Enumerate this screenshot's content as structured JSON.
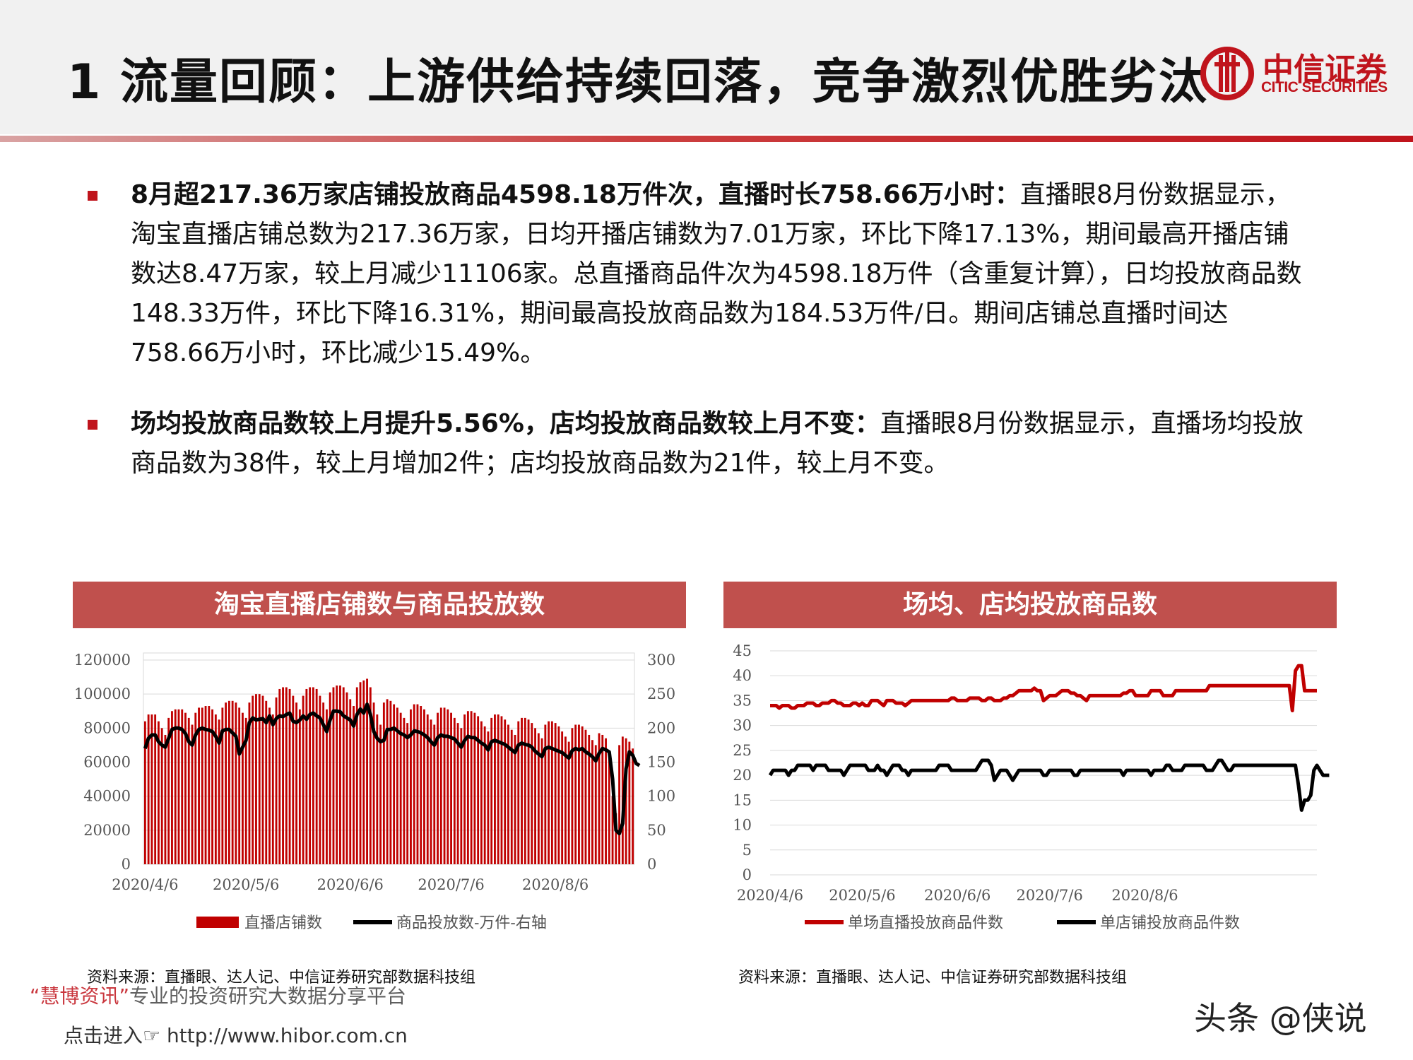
{
  "header": {
    "title": "1 流量回顾：上游供给持续回落，竞争激烈优胜劣汰",
    "logo_cn": "中信证券",
    "logo_en": "CITIC SECURITIES"
  },
  "bullets": [
    {
      "bold": "8月超217.36万家店铺投放商品4598.18万件次，直播时长758.66万小时：",
      "text": "直播眼8月份数据显示，淘宝直播店铺总数为217.36万家，日均开播店铺数为7.01万家，环比下降17.13%，期间最高开播店铺数达8.47万家，较上月减少11106家。总直播商品件次为4598.18万件（含重复计算），日均投放商品数148.33万件，环比下降16.31%，期间最高投放商品数为184.53万件/日。期间店铺总直播时间达758.66万小时，环比减少15.49%。"
    },
    {
      "bold": "场均投放商品数较上月提升5.56%，店均投放商品数较上月不变：",
      "text": "直播眼8月份数据显示，直播场均投放商品数为38件，较上月增加2件；店均投放商品数为21件，较上月不变。"
    }
  ],
  "chart_left": {
    "panel_title": "淘宝直播店铺数与商品投放数",
    "source": "资料来源：直播眼、达人记、中信证券研究部数据科技组"
  },
  "chart_right": {
    "panel_title": "场均、店均投放商品数",
    "source": "资料来源：直播眼、达人记、中信证券研究部数据科技组"
  },
  "chart_data": [
    {
      "type": "bar",
      "title": "淘宝直播店铺数与商品投放数",
      "x_tick_labels": [
        "2020/4/6",
        "2020/5/6",
        "2020/6/6",
        "2020/7/6",
        "2020/8/6"
      ],
      "x_start": "2020/4/6",
      "y_left": {
        "ticks": [
          0,
          20000,
          40000,
          60000,
          80000,
          100000,
          120000
        ],
        "ylim": [
          0,
          120000
        ]
      },
      "y_right": {
        "ticks": [
          0,
          50,
          100,
          150,
          200,
          250,
          300
        ],
        "ylim": [
          0,
          300
        ]
      },
      "grid": true,
      "legend_position": "bottom",
      "series": [
        {
          "name": "直播店铺数",
          "kind": "bar",
          "axis": "left",
          "color": "#c00000",
          "values": [
            84000,
            88000,
            88000,
            88000,
            84000,
            80000,
            76000,
            86000,
            90000,
            91000,
            91000,
            91000,
            89000,
            86000,
            82000,
            89000,
            92000,
            92000,
            93000,
            93000,
            91000,
            88000,
            85000,
            92000,
            95000,
            96000,
            96000,
            95000,
            92000,
            89000,
            86000,
            95000,
            99000,
            100000,
            100000,
            99000,
            96000,
            92000,
            88000,
            98000,
            103000,
            104000,
            104000,
            103000,
            99000,
            95000,
            91000,
            99000,
            103000,
            104000,
            104000,
            103000,
            99000,
            95000,
            91000,
            101000,
            104000,
            105000,
            105000,
            104000,
            101000,
            97000,
            93000,
            104000,
            107000,
            108000,
            109000,
            104000,
            95000,
            88000,
            82000,
            95000,
            97000,
            96000,
            94000,
            92000,
            89000,
            86000,
            83000,
            91000,
            94000,
            94000,
            93000,
            91000,
            88000,
            85000,
            82000,
            89000,
            92000,
            92000,
            91000,
            89000,
            86000,
            83000,
            80000,
            88000,
            90000,
            90000,
            89000,
            87000,
            84000,
            81000,
            78000,
            86000,
            88000,
            88000,
            87000,
            85000,
            82000,
            79000,
            76000,
            84000,
            86000,
            86000,
            85000,
            83000,
            80000,
            77000,
            74000,
            82000,
            84000,
            84000,
            83000,
            81000,
            78000,
            75000,
            72000,
            80000,
            82000,
            82000,
            81000,
            79000,
            76000,
            73000,
            70000,
            77000,
            76000,
            74000,
            65000,
            40000,
            30000,
            70000,
            75000,
            74000,
            72000,
            68000
          ]
        },
        {
          "name": "商品投放数-万件-右轴",
          "kind": "line",
          "axis": "right",
          "color": "#000000",
          "values": [
            170,
            185,
            190,
            190,
            180,
            175,
            172,
            185,
            198,
            200,
            200,
            198,
            192,
            180,
            175,
            190,
            198,
            200,
            198,
            197,
            195,
            188,
            178,
            196,
            198,
            198,
            193,
            188,
            162,
            172,
            182,
            208,
            215,
            212,
            213,
            214,
            208,
            218,
            205,
            214,
            218,
            217,
            220,
            222,
            210,
            208,
            212,
            218,
            213,
            220,
            222,
            218,
            215,
            205,
            195,
            212,
            225,
            225,
            224,
            218,
            215,
            212,
            203,
            220,
            228,
            222,
            235,
            220,
            195,
            185,
            180,
            182,
            198,
            198,
            200,
            196,
            192,
            190,
            186,
            190,
            196,
            195,
            193,
            190,
            186,
            180,
            175,
            186,
            190,
            188,
            188,
            186,
            184,
            178,
            172,
            182,
            188,
            186,
            186,
            182,
            178,
            175,
            168,
            180,
            182,
            180,
            178,
            176,
            172,
            168,
            164,
            175,
            178,
            176,
            175,
            172,
            166,
            162,
            158,
            170,
            172,
            170,
            168,
            166,
            164,
            160,
            156,
            167,
            170,
            168,
            170,
            165,
            162,
            158,
            152,
            163,
            170,
            168,
            165,
            125,
            50,
            45,
            60,
            140,
            165,
            160,
            148,
            145
          ]
        }
      ]
    },
    {
      "type": "line",
      "title": "场均、店均投放商品数",
      "x_tick_labels": [
        "2020/4/6",
        "2020/5/6",
        "2020/6/6",
        "2020/7/6",
        "2020/8/6"
      ],
      "x_start": "2020/4/6",
      "ylim": [
        0,
        45
      ],
      "y_ticks": [
        0,
        5,
        10,
        15,
        20,
        25,
        30,
        35,
        40,
        45
      ],
      "grid": true,
      "legend_position": "bottom",
      "series": [
        {
          "name": "单场直播投放商品件数",
          "color": "#c00000",
          "values": [
            34,
            34,
            34,
            33.5,
            34,
            34,
            34,
            33.5,
            33.5,
            34,
            34,
            34,
            34.5,
            34.5,
            34.5,
            34,
            34,
            34.5,
            34.5,
            34.5,
            35,
            35,
            34.5,
            34.5,
            34,
            34,
            34,
            34.5,
            34.5,
            34,
            34.5,
            34,
            34,
            35,
            35,
            35,
            34.5,
            34,
            35,
            35,
            35,
            34.5,
            34.5,
            34.5,
            34,
            34.5,
            35,
            35,
            35,
            35,
            35,
            35,
            35,
            35,
            35,
            35,
            35,
            35,
            35,
            35.5,
            35.5,
            35,
            35,
            35,
            35,
            35.5,
            35.5,
            35.5,
            35.5,
            35,
            35,
            35.5,
            35.5,
            35,
            35,
            35,
            35.5,
            35.5,
            36,
            36,
            36.5,
            37,
            37,
            37,
            37,
            37,
            37.5,
            37,
            37,
            35,
            35.5,
            36,
            36,
            36,
            36.5,
            37,
            37,
            37,
            36.5,
            36.5,
            36,
            36,
            35.5,
            35,
            36,
            36,
            36,
            36,
            36,
            36,
            36,
            36,
            36,
            36,
            36,
            36.5,
            36.5,
            37,
            37,
            36,
            36,
            36,
            36,
            36,
            37,
            37,
            37,
            37,
            36,
            36,
            36,
            36,
            37,
            37,
            37,
            37,
            37,
            37,
            37,
            37,
            37,
            37,
            37,
            38,
            38,
            38,
            38,
            38,
            38,
            38,
            38,
            38,
            38,
            38,
            38,
            38,
            38,
            38,
            38,
            38,
            38,
            38,
            38,
            38,
            38,
            38,
            38,
            38,
            38,
            38,
            33,
            41,
            42,
            42,
            37,
            37,
            37,
            37,
            37
          ]
        },
        {
          "name": "单店铺投放商品件数",
          "color": "#000000",
          "values": [
            20,
            21,
            21,
            21,
            21,
            21,
            20,
            21,
            21,
            22,
            22,
            22,
            22,
            22,
            21,
            22,
            22,
            22,
            22,
            21,
            21,
            21,
            21,
            21,
            20,
            21,
            22,
            22,
            22,
            22,
            22,
            22,
            21,
            21,
            21,
            22,
            21,
            21,
            20,
            21,
            22,
            22,
            22,
            21,
            21,
            20,
            21,
            21,
            21,
            21,
            21,
            21,
            21,
            21,
            21,
            22,
            22,
            22,
            22,
            21,
            21,
            21,
            21,
            21,
            21,
            21,
            21,
            21,
            22,
            23,
            23,
            23,
            22,
            19,
            20,
            21,
            21,
            21,
            20,
            19,
            20,
            21,
            21,
            21,
            21,
            21,
            21,
            21,
            21,
            20,
            20,
            21,
            21,
            21,
            21,
            21,
            21,
            21,
            21,
            20,
            20,
            21,
            21,
            21,
            21,
            21,
            21,
            21,
            21,
            21,
            21,
            21,
            21,
            21,
            21,
            20,
            21,
            21,
            21,
            21,
            21,
            21,
            21,
            21,
            20,
            21,
            21,
            21,
            21,
            22,
            22,
            21,
            21,
            21,
            21,
            22,
            22,
            22,
            22,
            22,
            22,
            22,
            21,
            21,
            21,
            22,
            23,
            23,
            22,
            21,
            21,
            22,
            22,
            22,
            22,
            22,
            22,
            22,
            22,
            22,
            22,
            22,
            22,
            22,
            22,
            22,
            22,
            22,
            22,
            22,
            22,
            22,
            18,
            13,
            15,
            15,
            16,
            21,
            22,
            21,
            20,
            20,
            20
          ]
        }
      ]
    }
  ],
  "watermarks": {
    "brand": "“慧博资讯”",
    "brand_text": "专业的投资研究大数据分享平台",
    "link": "点击进入☞ http://www.hibor.com.cn",
    "toutiao": "头条 @侠说"
  }
}
